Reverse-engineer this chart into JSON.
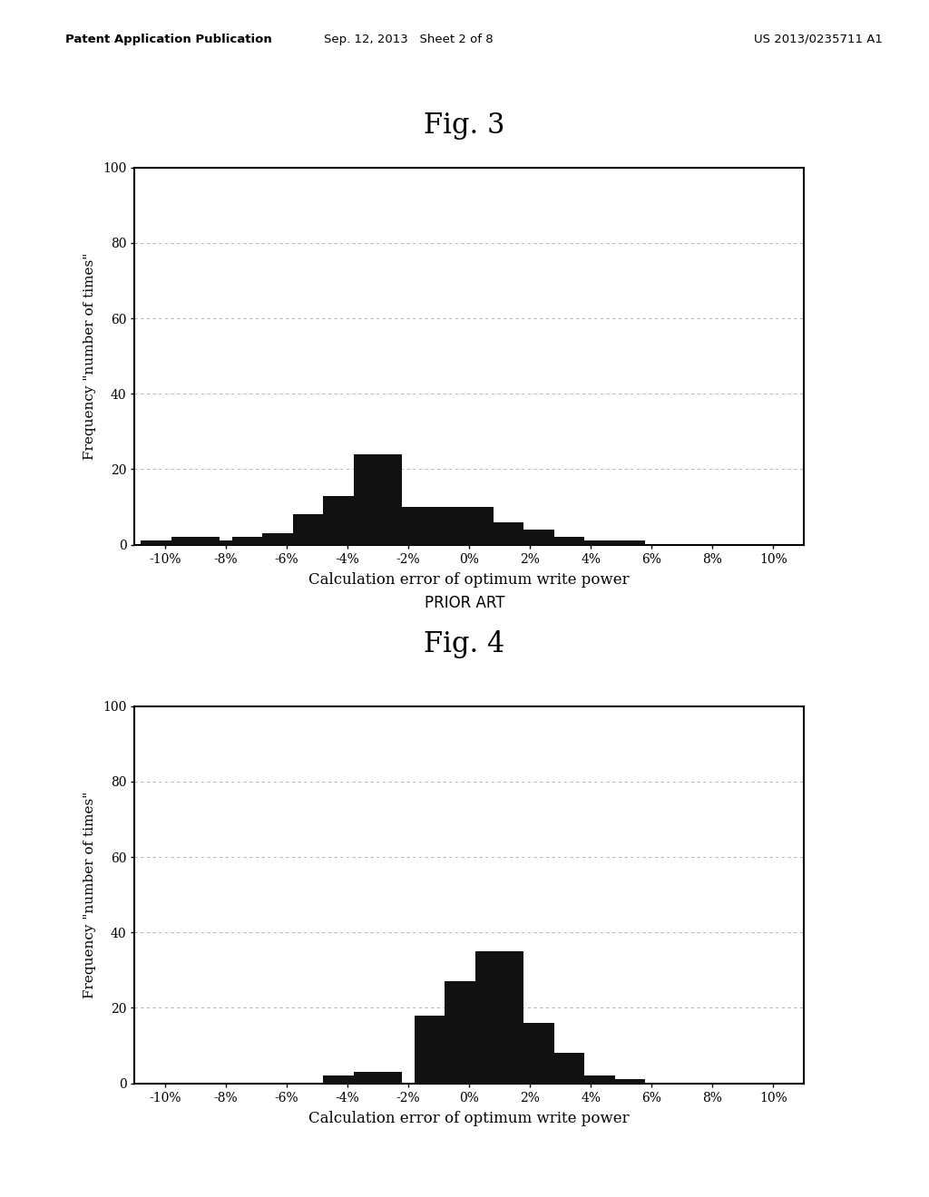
{
  "fig3_title": "Fig. 3",
  "fig4_title": "Fig. 4",
  "prior_art_label": "PRIOR ART",
  "xlabel": "Calculation error of optimum write power",
  "ylabel": "Frequency \"number of times\"",
  "xlim": [
    -11,
    11
  ],
  "ylim": [
    0,
    100
  ],
  "yticks": [
    0,
    20,
    40,
    60,
    80,
    100
  ],
  "xtick_labels": [
    "-10%",
    "-8%",
    "-6%",
    "-4%",
    "-2%",
    "0%",
    "2%",
    "4%",
    "6%",
    "8%",
    "10%"
  ],
  "xtick_positions": [
    -10,
    -8,
    -6,
    -4,
    -2,
    0,
    2,
    4,
    6,
    8,
    10
  ],
  "bar_width": 1.6,
  "fig3_values": [
    1,
    2,
    1,
    2,
    3,
    8,
    13,
    24,
    10,
    10,
    10,
    6,
    4,
    2,
    1,
    1,
    0,
    0,
    0,
    0,
    0
  ],
  "fig3_positions": [
    -10,
    -9,
    -8,
    -7,
    -6,
    -5,
    -4,
    -3,
    -2,
    -1,
    0,
    1,
    2,
    3,
    4,
    5,
    6,
    7,
    8,
    9,
    10
  ],
  "fig4_values": [
    0,
    0,
    0,
    0,
    0,
    0,
    2,
    3,
    0,
    18,
    27,
    35,
    16,
    8,
    2,
    1,
    0,
    0,
    0,
    0,
    0
  ],
  "fig4_positions": [
    -10,
    -9,
    -8,
    -7,
    -6,
    -5,
    -4,
    -3,
    -2,
    -1,
    0,
    1,
    2,
    3,
    4,
    5,
    6,
    7,
    8,
    9,
    10
  ],
  "bar_color": "#111111",
  "background_color": "#ffffff",
  "grid_color": "#aaaaaa",
  "header_left": "Patent Application Publication",
  "header_mid": "Sep. 12, 2013   Sheet 2 of 8",
  "header_right": "US 2013/0235711 A1"
}
